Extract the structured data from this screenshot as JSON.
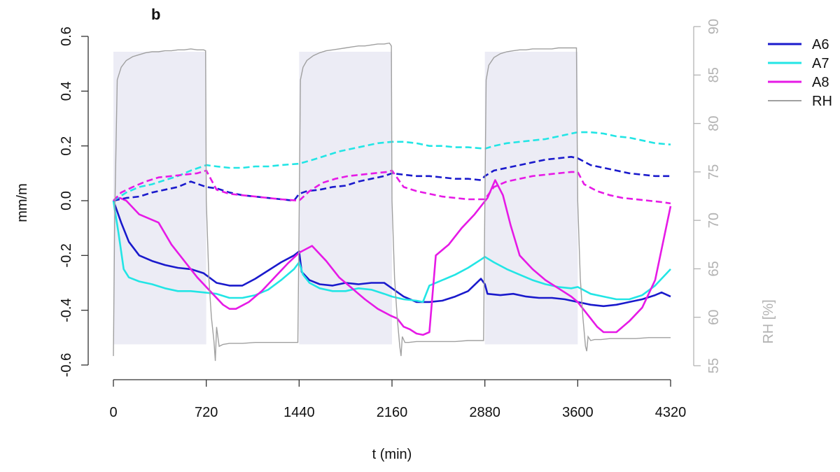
{
  "chart_data": {
    "type": "line",
    "panel_label": "b",
    "xlabel": "t (min)",
    "ylabel": "mm/m",
    "y2label": "RH [%]",
    "xlim": [
      0,
      4320
    ],
    "ylim": [
      -0.6,
      0.6
    ],
    "y2lim": [
      55,
      90
    ],
    "x_ticks": [
      "0",
      "720",
      "1440",
      "2160",
      "2880",
      "3600",
      "4320"
    ],
    "y_ticks": [
      "-0.6",
      "-0.4",
      "-0.2",
      "0.0",
      "0.2",
      "0.4",
      "0.6"
    ],
    "y2_ticks": [
      "55",
      "60",
      "65",
      "70",
      "75",
      "80",
      "85",
      "90"
    ],
    "high_rh_periods": [
      [
        0,
        720
      ],
      [
        1440,
        2160
      ],
      [
        2880,
        3600
      ]
    ],
    "grid": false,
    "legend_position": "right",
    "legend": [
      {
        "label": "A6",
        "color": "#1a1acc"
      },
      {
        "label": "A7",
        "color": "#22e5e5"
      },
      {
        "label": "A8",
        "color": "#e61ae6"
      },
      {
        "label": "RH",
        "color": "#a0a0a0"
      }
    ],
    "series": [
      {
        "name": "A6",
        "style": "solid",
        "color": "#1a1acc",
        "x": [
          0,
          60,
          120,
          200,
          300,
          400,
          500,
          600,
          700,
          800,
          900,
          1000,
          1100,
          1200,
          1300,
          1400,
          1440,
          1460,
          1520,
          1600,
          1700,
          1800,
          1900,
          2000,
          2100,
          2160,
          2250,
          2350,
          2450,
          2550,
          2650,
          2750,
          2850,
          2880,
          2900,
          3000,
          3100,
          3200,
          3300,
          3400,
          3500,
          3600,
          3700,
          3800,
          3900,
          4000,
          4100,
          4200,
          4250,
          4320
        ],
        "y": [
          0.0,
          -0.08,
          -0.15,
          -0.2,
          -0.22,
          -0.235,
          -0.245,
          -0.25,
          -0.265,
          -0.3,
          -0.31,
          -0.31,
          -0.285,
          -0.255,
          -0.225,
          -0.2,
          -0.185,
          -0.26,
          -0.29,
          -0.305,
          -0.31,
          -0.3,
          -0.305,
          -0.3,
          -0.3,
          -0.32,
          -0.35,
          -0.37,
          -0.37,
          -0.365,
          -0.35,
          -0.33,
          -0.285,
          -0.305,
          -0.34,
          -0.345,
          -0.34,
          -0.35,
          -0.355,
          -0.355,
          -0.36,
          -0.37,
          -0.38,
          -0.385,
          -0.38,
          -0.37,
          -0.36,
          -0.345,
          -0.335,
          -0.35
        ]
      },
      {
        "name": "A7",
        "style": "solid",
        "color": "#22e5e5",
        "x": [
          0,
          40,
          80,
          120,
          200,
          300,
          400,
          500,
          600,
          700,
          800,
          900,
          1000,
          1100,
          1200,
          1300,
          1400,
          1440,
          1470,
          1520,
          1600,
          1700,
          1800,
          1900,
          2000,
          2100,
          2160,
          2250,
          2350,
          2400,
          2450,
          2550,
          2650,
          2750,
          2850,
          2880,
          2950,
          3050,
          3150,
          3250,
          3350,
          3450,
          3550,
          3600,
          3700,
          3800,
          3900,
          4000,
          4100,
          4200,
          4320
        ],
        "y": [
          0.0,
          -0.12,
          -0.25,
          -0.28,
          -0.295,
          -0.305,
          -0.32,
          -0.33,
          -0.33,
          -0.335,
          -0.34,
          -0.355,
          -0.355,
          -0.345,
          -0.325,
          -0.29,
          -0.25,
          -0.225,
          -0.27,
          -0.3,
          -0.32,
          -0.33,
          -0.33,
          -0.32,
          -0.325,
          -0.34,
          -0.35,
          -0.36,
          -0.365,
          -0.37,
          -0.31,
          -0.29,
          -0.27,
          -0.245,
          -0.215,
          -0.205,
          -0.225,
          -0.25,
          -0.27,
          -0.29,
          -0.305,
          -0.315,
          -0.32,
          -0.315,
          -0.34,
          -0.35,
          -0.36,
          -0.36,
          -0.345,
          -0.31,
          -0.25
        ]
      },
      {
        "name": "A8",
        "style": "solid",
        "color": "#e61ae6",
        "x": [
          0,
          50,
          100,
          200,
          350,
          450,
          550,
          650,
          750,
          850,
          900,
          950,
          1050,
          1150,
          1250,
          1350,
          1440,
          1540,
          1650,
          1750,
          1850,
          1950,
          2050,
          2150,
          2200,
          2250,
          2300,
          2350,
          2400,
          2450,
          2500,
          2600,
          2700,
          2800,
          2900,
          2960,
          3020,
          3080,
          3150,
          3250,
          3350,
          3450,
          3550,
          3600,
          3650,
          3700,
          3750,
          3800,
          3900,
          4000,
          4100,
          4200,
          4320
        ],
        "y": [
          0.0,
          0.01,
          0.0,
          -0.05,
          -0.08,
          -0.16,
          -0.22,
          -0.28,
          -0.33,
          -0.38,
          -0.395,
          -0.395,
          -0.37,
          -0.33,
          -0.28,
          -0.23,
          -0.19,
          -0.165,
          -0.22,
          -0.28,
          -0.32,
          -0.36,
          -0.395,
          -0.42,
          -0.43,
          -0.46,
          -0.47,
          -0.485,
          -0.49,
          -0.48,
          -0.2,
          -0.16,
          -0.1,
          -0.05,
          0.01,
          0.075,
          0.02,
          -0.09,
          -0.2,
          -0.25,
          -0.29,
          -0.32,
          -0.35,
          -0.37,
          -0.4,
          -0.43,
          -0.46,
          -0.48,
          -0.48,
          -0.44,
          -0.39,
          -0.29,
          -0.02
        ]
      },
      {
        "name": "A6",
        "style": "dashed",
        "color": "#1a1acc",
        "x": [
          0,
          100,
          200,
          300,
          400,
          500,
          600,
          720,
          800,
          900,
          1000,
          1100,
          1200,
          1300,
          1400,
          1440,
          1500,
          1600,
          1700,
          1800,
          1900,
          2000,
          2100,
          2160,
          2250,
          2350,
          2450,
          2550,
          2650,
          2750,
          2850,
          2880,
          2950,
          3050,
          3150,
          3250,
          3350,
          3450,
          3550,
          3600,
          3700,
          3800,
          3900,
          4000,
          4100,
          4200,
          4320
        ],
        "y": [
          0.0,
          0.01,
          0.015,
          0.03,
          0.04,
          0.05,
          0.07,
          0.05,
          0.045,
          0.03,
          0.02,
          0.015,
          0.01,
          0.005,
          0.0,
          0.025,
          0.035,
          0.04,
          0.05,
          0.055,
          0.07,
          0.08,
          0.09,
          0.1,
          0.095,
          0.09,
          0.09,
          0.085,
          0.08,
          0.08,
          0.075,
          0.09,
          0.11,
          0.12,
          0.13,
          0.14,
          0.15,
          0.155,
          0.16,
          0.155,
          0.13,
          0.12,
          0.11,
          0.1,
          0.095,
          0.09,
          0.09
        ]
      },
      {
        "name": "A7",
        "style": "dashed",
        "color": "#22e5e5",
        "x": [
          0,
          100,
          200,
          300,
          400,
          500,
          600,
          720,
          800,
          900,
          1000,
          1100,
          1200,
          1300,
          1440,
          1550,
          1650,
          1750,
          1850,
          1950,
          2050,
          2160,
          2250,
          2350,
          2450,
          2550,
          2650,
          2750,
          2880,
          2950,
          3050,
          3150,
          3250,
          3350,
          3450,
          3550,
          3600,
          3700,
          3800,
          3900,
          4000,
          4100,
          4200,
          4320
        ],
        "y": [
          0.0,
          0.03,
          0.05,
          0.06,
          0.075,
          0.09,
          0.11,
          0.13,
          0.125,
          0.12,
          0.12,
          0.125,
          0.125,
          0.13,
          0.135,
          0.15,
          0.165,
          0.18,
          0.19,
          0.2,
          0.21,
          0.215,
          0.215,
          0.21,
          0.2,
          0.2,
          0.195,
          0.195,
          0.19,
          0.2,
          0.21,
          0.215,
          0.22,
          0.225,
          0.235,
          0.245,
          0.25,
          0.25,
          0.245,
          0.235,
          0.23,
          0.22,
          0.21,
          0.205
        ]
      },
      {
        "name": "A8",
        "style": "dashed",
        "color": "#e61ae6",
        "x": [
          0,
          60,
          150,
          250,
          350,
          450,
          550,
          650,
          720,
          800,
          900,
          1000,
          1100,
          1200,
          1300,
          1440,
          1520,
          1620,
          1720,
          1820,
          1920,
          2020,
          2120,
          2160,
          2250,
          2350,
          2450,
          2550,
          2650,
          2750,
          2880,
          2950,
          3050,
          3150,
          3250,
          3350,
          3450,
          3550,
          3600,
          3650,
          3750,
          3850,
          3950,
          4050,
          4150,
          4250,
          4320
        ],
        "y": [
          0.0,
          0.03,
          0.05,
          0.07,
          0.085,
          0.09,
          0.095,
          0.1,
          0.11,
          0.04,
          0.025,
          0.02,
          0.015,
          0.01,
          0.005,
          0.0,
          0.035,
          0.065,
          0.08,
          0.09,
          0.095,
          0.1,
          0.105,
          0.11,
          0.05,
          0.035,
          0.025,
          0.015,
          0.01,
          0.005,
          0.005,
          0.05,
          0.07,
          0.08,
          0.09,
          0.095,
          0.1,
          0.105,
          0.105,
          0.06,
          0.035,
          0.02,
          0.01,
          0.005,
          0.0,
          -0.005,
          -0.01
        ]
      }
    ],
    "rh_series": {
      "name": "RH",
      "color": "#a0a0a0",
      "x": [
        0,
        10,
        30,
        60,
        100,
        150,
        200,
        250,
        300,
        350,
        400,
        450,
        500,
        550,
        600,
        650,
        700,
        715,
        720,
        740,
        760,
        780,
        790,
        800,
        820,
        850,
        900,
        1000,
        1100,
        1200,
        1300,
        1400,
        1430,
        1440,
        1450,
        1470,
        1500,
        1550,
        1600,
        1650,
        1700,
        1750,
        1800,
        1850,
        1900,
        1950,
        2000,
        2050,
        2100,
        2140,
        2155,
        2160,
        2180,
        2200,
        2220,
        2230,
        2240,
        2260,
        2290,
        2350,
        2450,
        2550,
        2650,
        2750,
        2850,
        2870,
        2880,
        2890,
        2910,
        2950,
        3000,
        3050,
        3100,
        3150,
        3200,
        3250,
        3300,
        3350,
        3400,
        3450,
        3500,
        3550,
        3590,
        3600,
        3620,
        3640,
        3660,
        3670,
        3680,
        3700,
        3730,
        3780,
        3850,
        3950,
        4050,
        4150,
        4250,
        4320
      ],
      "y": [
        56.0,
        70.0,
        84.5,
        85.8,
        86.5,
        86.9,
        87.1,
        87.3,
        87.4,
        87.4,
        87.5,
        87.5,
        87.6,
        87.6,
        87.7,
        87.6,
        87.6,
        87.5,
        72.0,
        64.0,
        60.0,
        57.5,
        55.5,
        59.0,
        57.0,
        57.2,
        57.3,
        57.3,
        57.4,
        57.4,
        57.4,
        57.4,
        57.4,
        70.0,
        84.5,
        85.8,
        86.5,
        87.0,
        87.3,
        87.5,
        87.6,
        87.7,
        87.8,
        87.9,
        88.0,
        88.0,
        88.1,
        88.2,
        88.2,
        88.3,
        88.0,
        72.0,
        64.0,
        60.0,
        57.0,
        56.0,
        58.0,
        57.4,
        57.4,
        57.5,
        57.5,
        57.5,
        57.5,
        57.6,
        57.6,
        57.6,
        72.0,
        84.5,
        86.0,
        86.8,
        87.2,
        87.4,
        87.5,
        87.6,
        87.6,
        87.7,
        87.7,
        87.7,
        87.7,
        87.8,
        87.8,
        87.8,
        87.8,
        72.0,
        64.0,
        60.0,
        57.0,
        56.5,
        58.0,
        57.6,
        57.7,
        57.7,
        57.8,
        57.8,
        57.8,
        57.9,
        57.9,
        57.9
      ]
    }
  }
}
